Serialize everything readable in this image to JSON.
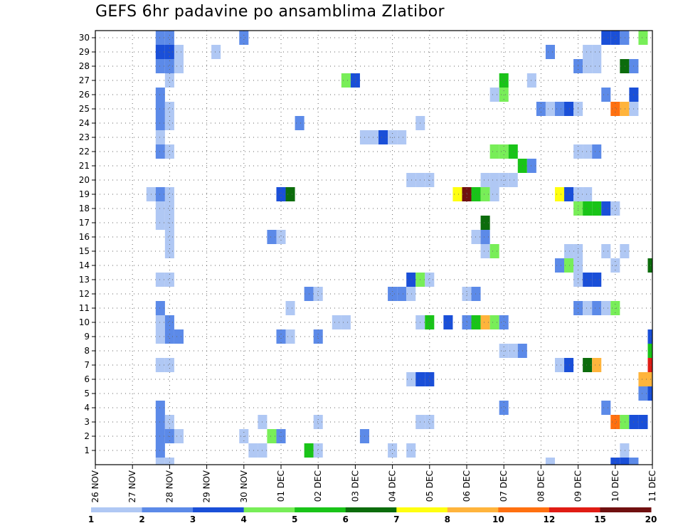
{
  "chart_data": {
    "type": "heatmap",
    "title": "GEFS 6hr padavine po ansamblima Zlatibor",
    "xlabel": "",
    "ylabel": "",
    "x_ticks": [
      "26 NOV",
      "27 NOV",
      "28 NOV",
      "29 NOV",
      "30 NOV",
      "01 DEC",
      "02 DEC",
      "03 DEC",
      "04 DEC",
      "05 DEC",
      "06 DEC",
      "07 DEC",
      "08 DEC",
      "09 DEC",
      "10 DEC",
      "11 DEC"
    ],
    "y_ticks": [
      "1",
      "2",
      "3",
      "4",
      "5",
      "6",
      "7",
      "8",
      "9",
      "10",
      "11",
      "12",
      "13",
      "14",
      "15",
      "16",
      "17",
      "18",
      "19",
      "20",
      "21",
      "22",
      "23",
      "24",
      "25",
      "26",
      "27",
      "28",
      "29",
      "30"
    ],
    "x_range": [
      "26 NOV 00Z",
      "11 DEC 00Z"
    ],
    "y_range": [
      0,
      30
    ],
    "grid": true,
    "colorbar": {
      "levels": [
        "1",
        "2",
        "3",
        "4",
        "5",
        "6",
        "7",
        "8",
        "10",
        "12",
        "15",
        "20"
      ],
      "colors": [
        "#b0c8f4",
        "#5c8ae8",
        "#1a4fd8",
        "#78ee58",
        "#19c418",
        "#0c6c0c",
        "#ffff10",
        "#ffb43c",
        "#ff7010",
        "#e01c14",
        "#701010"
      ]
    },
    "cells_note": "each cell: [member, day offset from 26 NOV 00Z in 6h steps, color index into colorbar.colors]",
    "cells": [
      [
        30,
        1.75,
        1
      ],
      [
        30,
        2.0,
        1
      ],
      [
        30,
        4.0,
        1
      ],
      [
        30,
        13.75,
        2
      ],
      [
        30,
        14.0,
        2
      ],
      [
        30,
        14.25,
        1
      ],
      [
        30,
        14.75,
        3
      ],
      [
        29,
        1.75,
        2
      ],
      [
        29,
        2.0,
        2
      ],
      [
        29,
        2.25,
        0
      ],
      [
        29,
        3.25,
        0
      ],
      [
        29,
        12.25,
        1
      ],
      [
        29,
        13.25,
        0
      ],
      [
        29,
        13.5,
        0
      ],
      [
        28,
        1.75,
        1
      ],
      [
        28,
        2.0,
        1
      ],
      [
        28,
        2.25,
        0
      ],
      [
        28,
        13.0,
        1
      ],
      [
        28,
        13.25,
        0
      ],
      [
        28,
        13.5,
        0
      ],
      [
        28,
        14.25,
        5
      ],
      [
        28,
        14.5,
        1
      ],
      [
        27,
        2.0,
        0
      ],
      [
        27,
        6.75,
        3
      ],
      [
        27,
        7.0,
        2
      ],
      [
        27,
        11.0,
        4
      ],
      [
        27,
        11.75,
        0
      ],
      [
        26,
        1.75,
        1
      ],
      [
        26,
        11.0,
        3
      ],
      [
        26,
        10.75,
        0
      ],
      [
        26,
        13.75,
        1
      ],
      [
        26,
        14.5,
        2
      ],
      [
        25,
        1.75,
        1
      ],
      [
        25,
        2.0,
        0
      ],
      [
        25,
        12.0,
        1
      ],
      [
        25,
        12.25,
        0
      ],
      [
        25,
        12.5,
        1
      ],
      [
        25,
        12.75,
        2
      ],
      [
        25,
        13.0,
        0
      ],
      [
        25,
        14.0,
        8
      ],
      [
        25,
        14.25,
        7
      ],
      [
        25,
        14.5,
        0
      ],
      [
        24,
        1.75,
        1
      ],
      [
        24,
        2.0,
        0
      ],
      [
        24,
        5.5,
        1
      ],
      [
        24,
        8.75,
        0
      ],
      [
        23,
        1.75,
        0
      ],
      [
        23,
        7.25,
        0
      ],
      [
        23,
        7.5,
        0
      ],
      [
        23,
        7.75,
        2
      ],
      [
        23,
        8.0,
        0
      ],
      [
        23,
        8.25,
        0
      ],
      [
        22,
        1.75,
        1
      ],
      [
        22,
        2.0,
        0
      ],
      [
        22,
        10.75,
        3
      ],
      [
        22,
        11.0,
        3
      ],
      [
        22,
        11.25,
        4
      ],
      [
        22,
        13.0,
        0
      ],
      [
        22,
        13.25,
        0
      ],
      [
        22,
        13.5,
        1
      ],
      [
        21,
        11.5,
        4
      ],
      [
        21,
        11.75,
        1
      ],
      [
        20,
        8.5,
        0
      ],
      [
        20,
        8.75,
        0
      ],
      [
        20,
        9.0,
        0
      ],
      [
        20,
        10.5,
        0
      ],
      [
        20,
        10.75,
        0
      ],
      [
        20,
        11.0,
        0
      ],
      [
        20,
        11.25,
        0
      ],
      [
        19,
        1.5,
        0
      ],
      [
        19,
        1.75,
        1
      ],
      [
        19,
        2.0,
        0
      ],
      [
        19,
        5.0,
        2
      ],
      [
        19,
        5.25,
        5
      ],
      [
        19,
        9.75,
        6
      ],
      [
        19,
        10.0,
        10
      ],
      [
        19,
        10.25,
        4
      ],
      [
        19,
        10.5,
        3
      ],
      [
        19,
        10.75,
        0
      ],
      [
        19,
        12.5,
        6
      ],
      [
        19,
        12.75,
        2
      ],
      [
        19,
        13.0,
        0
      ],
      [
        19,
        13.25,
        0
      ],
      [
        18,
        1.75,
        0
      ],
      [
        18,
        2.0,
        0
      ],
      [
        18,
        13.0,
        3
      ],
      [
        18,
        13.25,
        4
      ],
      [
        18,
        13.5,
        4
      ],
      [
        18,
        13.75,
        2
      ],
      [
        18,
        14.0,
        0
      ],
      [
        17,
        1.75,
        0
      ],
      [
        17,
        2.0,
        0
      ],
      [
        17,
        10.5,
        5
      ],
      [
        16,
        2.0,
        0
      ],
      [
        16,
        4.75,
        1
      ],
      [
        16,
        5.0,
        0
      ],
      [
        16,
        10.25,
        0
      ],
      [
        16,
        10.5,
        1
      ],
      [
        15,
        2.0,
        0
      ],
      [
        15,
        10.5,
        0
      ],
      [
        15,
        10.75,
        3
      ],
      [
        15,
        12.75,
        0
      ],
      [
        15,
        13.0,
        0
      ],
      [
        15,
        13.75,
        0
      ],
      [
        15,
        14.25,
        0
      ],
      [
        14,
        12.5,
        1
      ],
      [
        14,
        12.75,
        3
      ],
      [
        14,
        13.0,
        0
      ],
      [
        14,
        14.0,
        0
      ],
      [
        14,
        15.0,
        5
      ],
      [
        13,
        1.75,
        0
      ],
      [
        13,
        2.0,
        0
      ],
      [
        13,
        8.5,
        2
      ],
      [
        13,
        8.75,
        3
      ],
      [
        13,
        9.0,
        0
      ],
      [
        13,
        13.0,
        0
      ],
      [
        13,
        13.25,
        2
      ],
      [
        13,
        13.5,
        2
      ],
      [
        12,
        5.75,
        1
      ],
      [
        12,
        6.0,
        0
      ],
      [
        12,
        8.0,
        1
      ],
      [
        12,
        8.25,
        1
      ],
      [
        12,
        8.5,
        0
      ],
      [
        12,
        10.0,
        0
      ],
      [
        12,
        10.25,
        1
      ],
      [
        11,
        1.75,
        1
      ],
      [
        11,
        5.25,
        0
      ],
      [
        11,
        13.0,
        1
      ],
      [
        11,
        13.25,
        0
      ],
      [
        11,
        13.5,
        1
      ],
      [
        11,
        13.75,
        0
      ],
      [
        11,
        14.0,
        3
      ],
      [
        10,
        1.75,
        0
      ],
      [
        10,
        2.0,
        1
      ],
      [
        10,
        6.5,
        0
      ],
      [
        10,
        6.75,
        0
      ],
      [
        10,
        8.75,
        0
      ],
      [
        10,
        9.0,
        4
      ],
      [
        10,
        9.5,
        2
      ],
      [
        10,
        10.0,
        1
      ],
      [
        10,
        10.25,
        4
      ],
      [
        10,
        10.5,
        7
      ],
      [
        10,
        10.75,
        3
      ],
      [
        10,
        11.0,
        1
      ],
      [
        9,
        1.75,
        0
      ],
      [
        9,
        2.0,
        1
      ],
      [
        9,
        2.25,
        1
      ],
      [
        9,
        5.0,
        1
      ],
      [
        9,
        5.25,
        0
      ],
      [
        9,
        6.0,
        1
      ],
      [
        9,
        15.0,
        2
      ],
      [
        8,
        11.0,
        0
      ],
      [
        8,
        11.25,
        0
      ],
      [
        8,
        11.5,
        1
      ],
      [
        8,
        15.0,
        4
      ],
      [
        7,
        1.75,
        0
      ],
      [
        7,
        2.0,
        0
      ],
      [
        7,
        12.5,
        0
      ],
      [
        7,
        12.75,
        2
      ],
      [
        7,
        13.25,
        5
      ],
      [
        7,
        13.5,
        7
      ],
      [
        7,
        15.0,
        9
      ],
      [
        6,
        8.5,
        0
      ],
      [
        6,
        8.75,
        2
      ],
      [
        6,
        9.0,
        2
      ],
      [
        6,
        14.75,
        7
      ],
      [
        6,
        15.0,
        7
      ],
      [
        5,
        14.75,
        1
      ],
      [
        5,
        15.0,
        2
      ],
      [
        4,
        1.75,
        1
      ],
      [
        4,
        11.0,
        1
      ],
      [
        4,
        13.75,
        1
      ],
      [
        3,
        1.75,
        1
      ],
      [
        3,
        2.0,
        0
      ],
      [
        3,
        4.5,
        0
      ],
      [
        3,
        6.0,
        0
      ],
      [
        3,
        8.75,
        0
      ],
      [
        3,
        9.0,
        0
      ],
      [
        3,
        14.0,
        8
      ],
      [
        3,
        14.25,
        3
      ],
      [
        3,
        14.5,
        2
      ],
      [
        3,
        14.75,
        2
      ],
      [
        2,
        1.75,
        1
      ],
      [
        2,
        2.0,
        1
      ],
      [
        2,
        2.25,
        0
      ],
      [
        2,
        4.0,
        0
      ],
      [
        2,
        4.75,
        3
      ],
      [
        2,
        5.0,
        1
      ],
      [
        2,
        7.25,
        1
      ],
      [
        1,
        1.75,
        1
      ],
      [
        1,
        4.25,
        0
      ],
      [
        1,
        4.5,
        0
      ],
      [
        1,
        5.75,
        4
      ],
      [
        1,
        6.0,
        0
      ],
      [
        1,
        8.0,
        0
      ],
      [
        1,
        8.5,
        0
      ],
      [
        1,
        14.25,
        0
      ],
      [
        0,
        1.75,
        0
      ],
      [
        0,
        2.0,
        0
      ],
      [
        0,
        12.25,
        0
      ],
      [
        0,
        14.0,
        2
      ],
      [
        0,
        14.25,
        2
      ],
      [
        0,
        14.5,
        1
      ]
    ]
  }
}
